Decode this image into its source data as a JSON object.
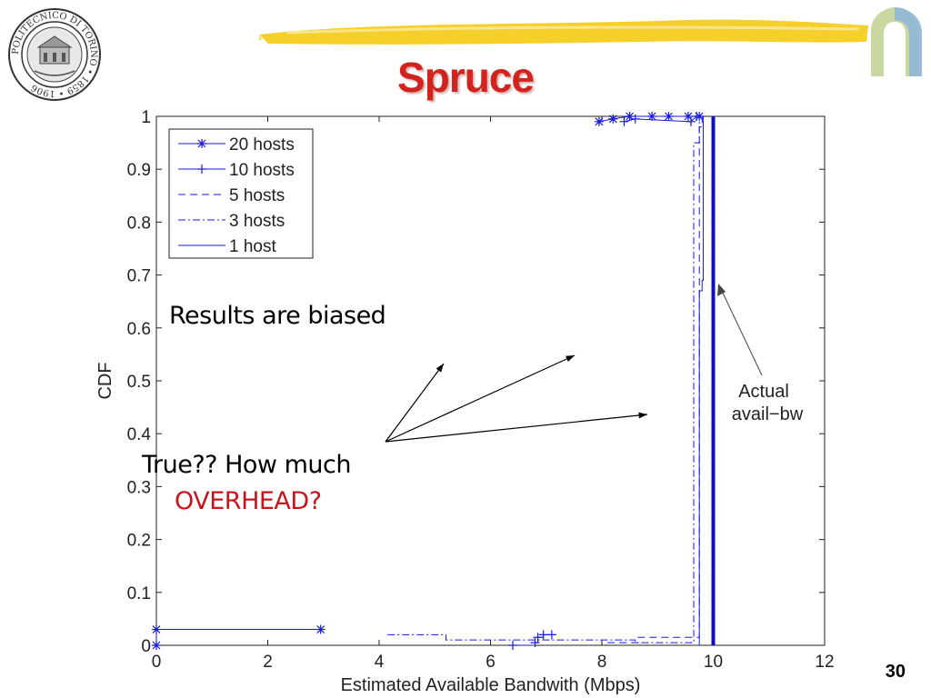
{
  "slide": {
    "title": "Spruce",
    "page_number": "30",
    "seal_text": "POLITECNICO DI TORINO • 1859 • 1906"
  },
  "annotations": {
    "biased": "Results are biased",
    "question_line1": "True?? How much",
    "question_line2": "OVERHEAD?",
    "actual_line1": "Actual",
    "actual_line2": "avail−bw"
  },
  "colors": {
    "title": "#d2231e",
    "series": "#1a1adc",
    "actual": "#0d0dc8",
    "overhead": "#c4161c"
  },
  "chart_data": {
    "type": "line",
    "xlabel": "Estimated Available Bandwith (Mbps)",
    "ylabel": "CDF",
    "xlim": [
      0,
      12
    ],
    "ylim": [
      0,
      1
    ],
    "xticks": [
      0,
      2,
      4,
      6,
      8,
      10,
      12
    ],
    "yticks": [
      0,
      0.1,
      0.2,
      0.3,
      0.4,
      0.5,
      0.6,
      0.7,
      0.8,
      0.9,
      1
    ],
    "legend_position": "top-left",
    "series": [
      {
        "name": "20 hosts",
        "style": "solid",
        "marker": "star",
        "points": [
          [
            0,
            0
          ],
          [
            0,
            0.03
          ],
          [
            2.95,
            0.03
          ]
        ],
        "top_points": [
          [
            7.95,
            0.99
          ],
          [
            8.2,
            0.995
          ],
          [
            8.5,
            1
          ],
          [
            8.9,
            1
          ],
          [
            9.2,
            1
          ],
          [
            9.55,
            1
          ],
          [
            9.75,
            1
          ]
        ]
      },
      {
        "name": "10 hosts",
        "style": "solid",
        "marker": "plus",
        "points": [
          [
            6.4,
            0
          ],
          [
            6.8,
            0.005
          ],
          [
            6.85,
            0.015
          ],
          [
            6.95,
            0.02
          ],
          [
            7.1,
            0.02
          ]
        ],
        "top_points": [
          [
            8.4,
            0.99
          ],
          [
            8.6,
            0.995
          ],
          [
            9.6,
            0.99
          ],
          [
            9.7,
            1
          ]
        ]
      },
      {
        "name": "5 hosts",
        "style": "dashed",
        "marker": "none",
        "points": [
          [
            8.1,
            0.005
          ],
          [
            8.6,
            0.005
          ],
          [
            8.65,
            0.015
          ],
          [
            9.75,
            0.98
          ],
          [
            9.8,
            1
          ]
        ]
      },
      {
        "name": "3 hosts",
        "style": "dashdot",
        "marker": "none",
        "points": [
          [
            4.15,
            0.02
          ],
          [
            5.2,
            0.01
          ],
          [
            8.6,
            0.005
          ],
          [
            9.65,
            0.95
          ],
          [
            9.75,
            1
          ]
        ]
      },
      {
        "name": "1 host",
        "style": "solid",
        "marker": "none",
        "points": [
          [
            9.75,
            0
          ],
          [
            9.75,
            0.67
          ],
          [
            9.8,
            0.69
          ],
          [
            9.82,
            1
          ]
        ]
      }
    ],
    "reference_line": {
      "label": "Actual avail−bw",
      "x": 10
    }
  }
}
